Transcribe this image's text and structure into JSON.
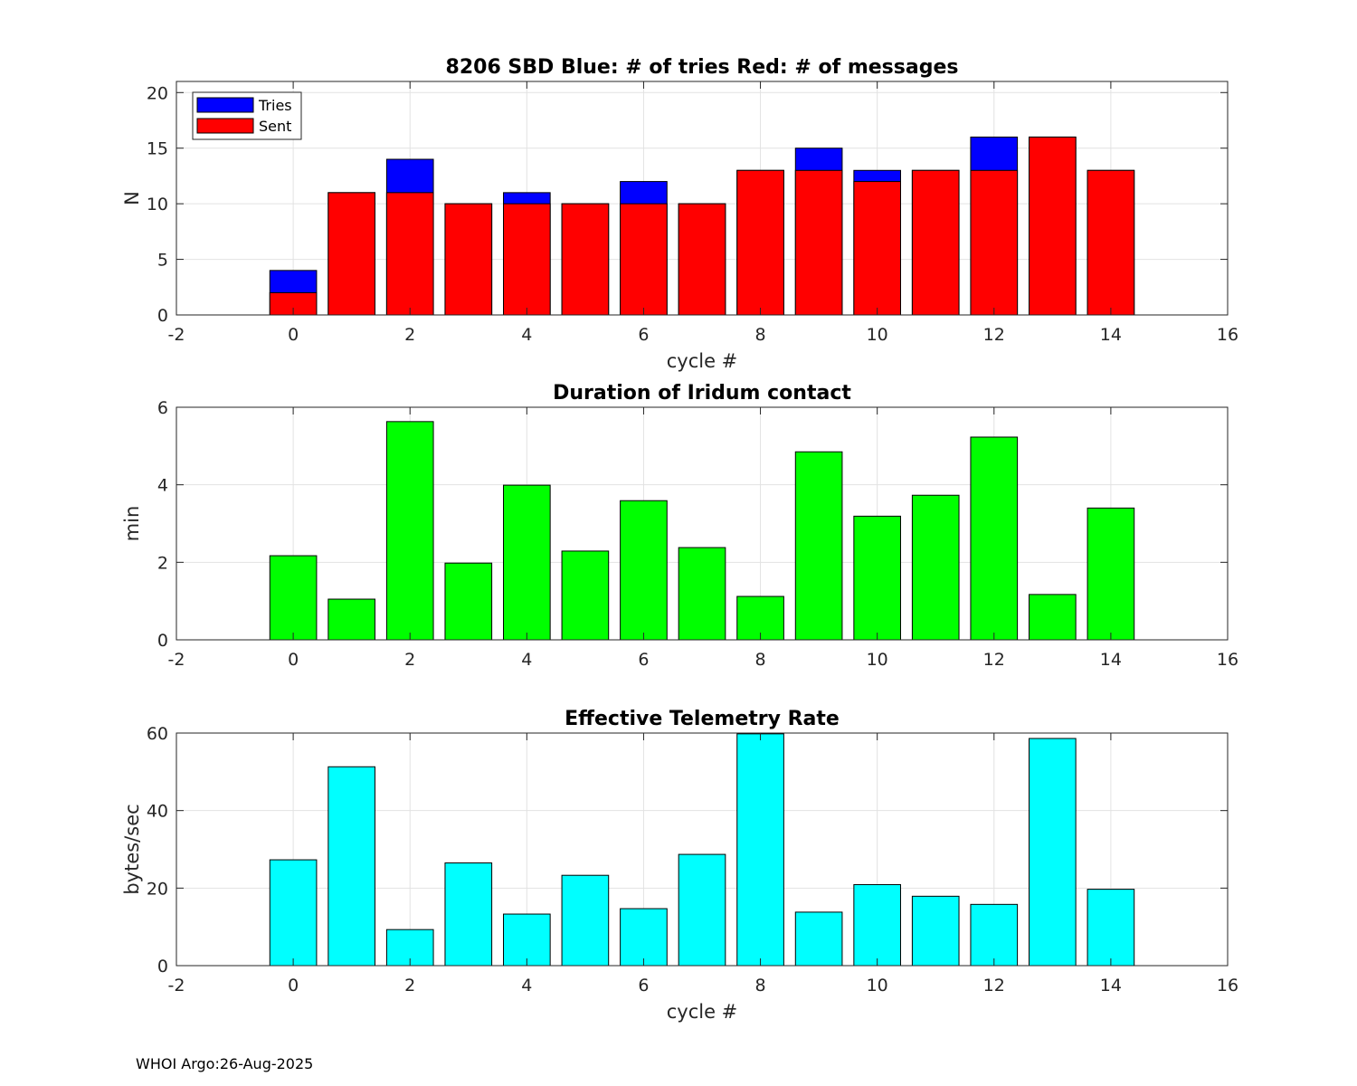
{
  "footer": "WHOI Argo:26-Aug-2025",
  "chart_data": [
    {
      "type": "bar",
      "stacked_overlay": true,
      "title": "8206 SBD  Blue: # of tries   Red: # of messages",
      "xlabel": "cycle #",
      "ylabel": "N",
      "xlim": [
        -2,
        16
      ],
      "ylim": [
        0,
        21
      ],
      "xticks": [
        -2,
        0,
        2,
        4,
        6,
        8,
        10,
        12,
        14,
        16
      ],
      "yticks": [
        0,
        5,
        10,
        15,
        20
      ],
      "grid": true,
      "legend": {
        "position": "top-left",
        "entries": [
          "Tries",
          "Sent"
        ]
      },
      "x": [
        0,
        1,
        2,
        3,
        4,
        5,
        6,
        7,
        8,
        9,
        10,
        11,
        12,
        13,
        14
      ],
      "series": [
        {
          "name": "Tries",
          "color": "#0000ff",
          "values": [
            4,
            11,
            14,
            10,
            11,
            10,
            12,
            10,
            13,
            15,
            13,
            13,
            16,
            16,
            13
          ]
        },
        {
          "name": "Sent",
          "color": "#ff0000",
          "values": [
            2,
            11,
            11,
            10,
            10,
            10,
            10,
            10,
            13,
            13,
            12,
            13,
            13,
            16,
            13
          ]
        }
      ]
    },
    {
      "type": "bar",
      "title": "Duration of Iridum contact",
      "xlabel": "",
      "ylabel": "min",
      "xlim": [
        -2,
        16
      ],
      "ylim": [
        0,
        6
      ],
      "xticks": [
        -2,
        0,
        2,
        4,
        6,
        8,
        10,
        12,
        14,
        16
      ],
      "yticks": [
        0,
        2,
        4,
        6
      ],
      "grid": true,
      "x": [
        0,
        1,
        2,
        3,
        4,
        5,
        6,
        7,
        8,
        9,
        10,
        11,
        12,
        13,
        14
      ],
      "series": [
        {
          "name": "Duration",
          "color": "#00ff00",
          "values": [
            2.17,
            1.05,
            5.63,
            1.98,
            3.99,
            2.29,
            3.59,
            2.38,
            1.12,
            4.85,
            3.19,
            3.73,
            5.23,
            1.17,
            3.4
          ]
        }
      ]
    },
    {
      "type": "bar",
      "title": "Effective Telemetry Rate",
      "xlabel": "cycle #",
      "ylabel": "bytes/sec",
      "xlim": [
        -2,
        16
      ],
      "ylim": [
        0,
        60
      ],
      "xticks": [
        -2,
        0,
        2,
        4,
        6,
        8,
        10,
        12,
        14,
        16
      ],
      "yticks": [
        0,
        20,
        40,
        60
      ],
      "grid": true,
      "x": [
        0,
        1,
        2,
        3,
        4,
        5,
        6,
        7,
        8,
        9,
        10,
        11,
        12,
        13,
        14
      ],
      "series": [
        {
          "name": "Rate",
          "color": "#00ffff",
          "values": [
            27.3,
            51.3,
            9.3,
            26.5,
            13.3,
            23.3,
            14.7,
            28.7,
            59.8,
            13.8,
            20.9,
            17.9,
            15.8,
            58.6,
            19.7
          ]
        }
      ]
    }
  ]
}
